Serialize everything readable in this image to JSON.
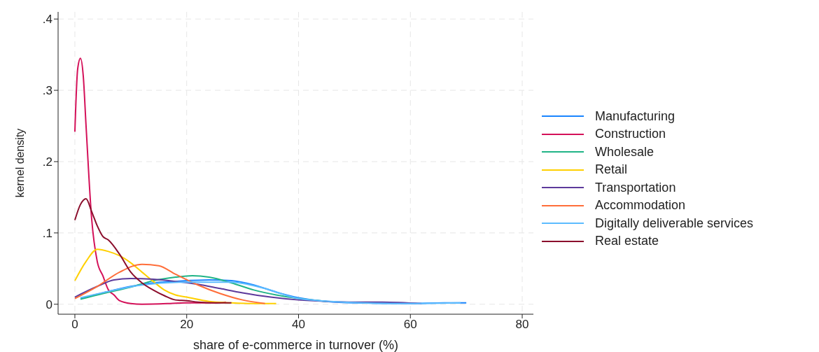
{
  "chart_data": {
    "type": "line",
    "xlabel": "share of e-commerce in turnover (%)",
    "ylabel": "kernel density",
    "xlim": [
      -3,
      82
    ],
    "xticks": [
      0,
      20,
      40,
      60,
      80
    ],
    "ylim": [
      -0.014,
      0.41
    ],
    "yticks": [
      {
        "value": 0,
        "label": "0"
      },
      {
        "value": 0.1,
        "label": ".1"
      },
      {
        "value": 0.2,
        "label": ".2"
      },
      {
        "value": 0.3,
        "label": ".3"
      },
      {
        "value": 0.4,
        "label": ".4"
      }
    ],
    "grid": true,
    "legend": "right",
    "marker": "none",
    "line_style": "solid",
    "series": [
      {
        "name": "Manufacturing",
        "color": "#1a85ff",
        "x": [
          1,
          5,
          10,
          14,
          18,
          24,
          28,
          32,
          36,
          40,
          45,
          50,
          60,
          66,
          70
        ],
        "values": [
          0.008,
          0.016,
          0.025,
          0.03,
          0.032,
          0.034,
          0.033,
          0.027,
          0.017,
          0.009,
          0.004,
          0.002,
          0.001,
          0.002,
          0.002
        ]
      },
      {
        "name": "Construction",
        "color": "#d41159",
        "x": [
          0,
          0.5,
          1,
          1.5,
          2,
          3,
          4,
          5,
          6,
          7,
          8,
          10,
          12,
          17,
          20,
          25,
          27
        ],
        "values": [
          0.242,
          0.33,
          0.345,
          0.32,
          0.25,
          0.12,
          0.06,
          0.04,
          0.02,
          0.013,
          0.005,
          0.001,
          0,
          0.001,
          0.002,
          0.002,
          0.003
        ]
      },
      {
        "name": "Wholesale",
        "color": "#20b486",
        "x": [
          1,
          5,
          10,
          14,
          18,
          21,
          24,
          28,
          32,
          36,
          40,
          45
        ],
        "values": [
          0.007,
          0.015,
          0.024,
          0.033,
          0.038,
          0.04,
          0.038,
          0.03,
          0.02,
          0.013,
          0.008,
          0.004
        ]
      },
      {
        "name": "Retail",
        "color": "#ffd000",
        "x": [
          0,
          2,
          4,
          6,
          8,
          10,
          12,
          14,
          16,
          18,
          20,
          24,
          28,
          32,
          36
        ],
        "values": [
          0.033,
          0.06,
          0.077,
          0.074,
          0.068,
          0.058,
          0.045,
          0.032,
          0.02,
          0.013,
          0.01,
          0.004,
          0.002,
          0.001,
          0.001
        ]
      },
      {
        "name": "Transportation",
        "color": "#5d3a9b",
        "x": [
          0,
          4,
          7,
          10,
          14,
          18,
          22,
          26,
          30,
          35,
          40,
          45,
          50,
          55,
          62
        ],
        "values": [
          0.01,
          0.025,
          0.034,
          0.036,
          0.035,
          0.032,
          0.028,
          0.022,
          0.016,
          0.01,
          0.006,
          0.004,
          0.003,
          0.003,
          0.001
        ]
      },
      {
        "name": "Accommodation",
        "color": "#ff6e3a",
        "x": [
          0,
          4,
          8,
          12,
          15,
          18,
          22,
          26,
          30,
          34
        ],
        "values": [
          0.008,
          0.025,
          0.045,
          0.056,
          0.054,
          0.042,
          0.027,
          0.015,
          0.006,
          0.001
        ]
      },
      {
        "name": "Digitally deliverable services",
        "color": "#5cbcff",
        "x": [
          1,
          6,
          12,
          20,
          28,
          34,
          40,
          48,
          58,
          69
        ],
        "values": [
          0.009,
          0.018,
          0.027,
          0.031,
          0.031,
          0.022,
          0.008,
          0.003,
          0.001,
          0.002
        ]
      },
      {
        "name": "Real estate",
        "color": "#8b0e2c",
        "x": [
          0,
          1,
          2,
          3,
          4,
          5,
          6,
          8,
          10,
          12,
          14,
          16,
          18,
          20,
          22,
          25,
          28
        ],
        "values": [
          0.118,
          0.14,
          0.148,
          0.13,
          0.11,
          0.095,
          0.09,
          0.07,
          0.045,
          0.03,
          0.02,
          0.012,
          0.006,
          0.005,
          0.003,
          0.002,
          0.002
        ]
      }
    ]
  }
}
